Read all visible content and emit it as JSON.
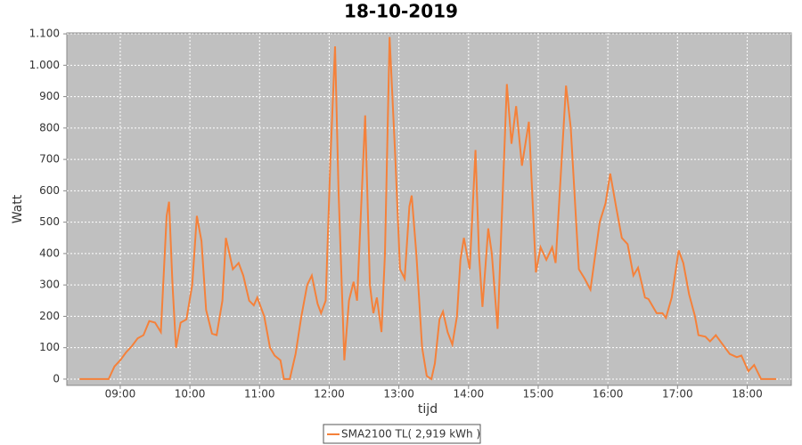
{
  "chart_data": {
    "type": "line",
    "title": "18-10-2019",
    "x_label": "tijd",
    "y_label": "Watt",
    "x": [
      "08:25",
      "08:50",
      "08:55",
      "09:00",
      "09:05",
      "09:10",
      "09:15",
      "09:20",
      "09:25",
      "09:30",
      "09:35",
      "09:40",
      "09:42",
      "09:45",
      "09:48",
      "09:52",
      "09:57",
      "10:02",
      "10:06",
      "10:10",
      "10:14",
      "10:19",
      "10:23",
      "10:28",
      "10:31",
      "10:37",
      "10:42",
      "10:46",
      "10:51",
      "10:55",
      "10:58",
      "11:04",
      "11:09",
      "11:13",
      "11:18",
      "11:21",
      "11:26",
      "11:31",
      "11:36",
      "11:41",
      "11:45",
      "11:50",
      "11:53",
      "11:57",
      "12:01",
      "12:05",
      "12:08",
      "12:13",
      "12:17",
      "12:21",
      "12:24",
      "12:31",
      "12:35",
      "12:38",
      "12:41",
      "12:45",
      "12:48",
      "12:52",
      "12:57",
      "13:01",
      "13:05",
      "13:09",
      "13:11",
      "13:15",
      "13:20",
      "13:24",
      "13:28",
      "13:31",
      "13:35",
      "13:38",
      "13:42",
      "13:46",
      "13:50",
      "13:53",
      "13:56",
      "14:01",
      "14:06",
      "14:09",
      "14:12",
      "14:17",
      "14:20",
      "14:25",
      "14:33",
      "14:37",
      "14:41",
      "14:46",
      "14:52",
      "14:58",
      "15:02",
      "15:07",
      "15:12",
      "15:15",
      "15:24",
      "15:28",
      "15:35",
      "15:40",
      "15:45",
      "15:53",
      "15:58",
      "16:02",
      "16:07",
      "16:12",
      "16:17",
      "16:22",
      "16:26",
      "16:32",
      "16:35",
      "16:42",
      "16:47",
      "16:50",
      "16:55",
      "17:01",
      "17:05",
      "17:10",
      "17:15",
      "17:18",
      "17:24",
      "17:28",
      "17:33",
      "17:39",
      "17:45",
      "17:51",
      "17:55",
      "18:01",
      "18:06",
      "18:12",
      "18:25"
    ],
    "series": [
      {
        "name": "SMA2100 TL( 2,919 kWh )",
        "color": "#f5813a",
        "values": [
          0,
          0,
          40,
          60,
          85,
          105,
          130,
          140,
          185,
          180,
          150,
          520,
          565,
          300,
          100,
          180,
          190,
          300,
          520,
          440,
          220,
          145,
          140,
          250,
          450,
          350,
          370,
          330,
          250,
          235,
          260,
          200,
          100,
          75,
          60,
          0,
          0,
          80,
          200,
          300,
          330,
          240,
          210,
          250,
          700,
          1060,
          600,
          60,
          250,
          310,
          250,
          840,
          300,
          210,
          260,
          150,
          400,
          1090,
          700,
          350,
          320,
          550,
          585,
          400,
          100,
          10,
          0,
          50,
          190,
          215,
          150,
          110,
          200,
          380,
          450,
          350,
          730,
          400,
          230,
          480,
          400,
          160,
          940,
          750,
          870,
          680,
          820,
          340,
          420,
          380,
          420,
          370,
          935,
          800,
          350,
          320,
          285,
          500,
          560,
          655,
          550,
          450,
          430,
          330,
          355,
          260,
          255,
          210,
          210,
          195,
          260,
          410,
          370,
          270,
          200,
          140,
          135,
          120,
          140,
          110,
          80,
          70,
          75,
          25,
          45,
          0,
          0
        ]
      }
    ],
    "xlim": [
      "08:14",
      "18:38"
    ],
    "xticks": [
      "09:00",
      "10:00",
      "11:00",
      "12:00",
      "13:00",
      "14:00",
      "15:00",
      "16:00",
      "17:00",
      "18:00"
    ],
    "ylim": [
      -20,
      1103
    ],
    "yticks": [
      0,
      100,
      200,
      300,
      400,
      500,
      600,
      700,
      800,
      900,
      {
        "value": 1000,
        "label": "1.000"
      },
      {
        "value": 1100,
        "label": "1.100"
      }
    ],
    "grid": true,
    "legend": "bottom"
  }
}
